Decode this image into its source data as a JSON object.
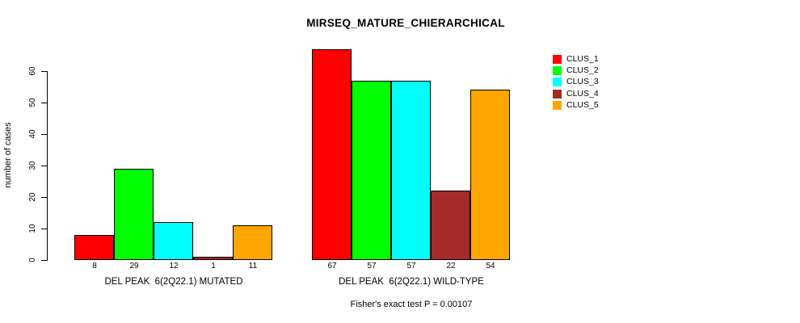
{
  "chart_data": {
    "type": "bar",
    "title": "MIRSEQ_MATURE_CHIERARCHICAL",
    "ylabel": "number of cases",
    "caption": "Fisher's exact test P = 0.00107",
    "categories": [
      "DEL PEAK  6(2Q22.1) MUTATED",
      "DEL PEAK  6(2Q22.1) WILD-TYPE"
    ],
    "series": [
      {
        "name": "CLUS_1",
        "color": "#FF0000",
        "values": [
          8,
          67
        ]
      },
      {
        "name": "CLUS_2",
        "color": "#00FF00",
        "values": [
          29,
          57
        ]
      },
      {
        "name": "CLUS_3",
        "color": "#00FFFF",
        "values": [
          12,
          57
        ]
      },
      {
        "name": "CLUS_4",
        "color": "#A52A2A",
        "values": [
          1,
          22
        ]
      },
      {
        "name": "CLUS_5",
        "color": "#FFA500",
        "values": [
          11,
          54
        ]
      }
    ],
    "yticks": [
      0,
      10,
      20,
      30,
      40,
      50,
      60
    ],
    "ylim": [
      0,
      67
    ],
    "grid": false,
    "legend_position": "top-right",
    "bar_value_labels_shown": true,
    "background_color": "#FFFFFF",
    "axis_color": "#000000"
  }
}
